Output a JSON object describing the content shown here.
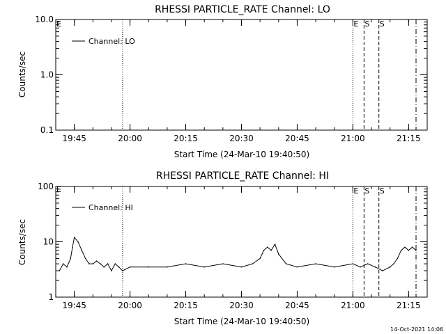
{
  "footer_timestamp": "14-Oct-2021 14:06",
  "chart_data": [
    {
      "type": "line",
      "title": "RHESSI PARTICLE_RATE Channel: LO",
      "xlabel": "Start Time (24-Mar-10 19:40:50)",
      "ylabel": "Counts/sec",
      "yscale": "log",
      "ylim": [
        0.1,
        10.0
      ],
      "yticks": [
        0.1,
        1.0,
        10.0
      ],
      "ytick_labels": [
        "0.1",
        "1.0",
        "10.0"
      ],
      "xlim": [
        "19:40",
        "21:20"
      ],
      "xticks": [
        "19:45",
        "20:00",
        "20:15",
        "20:30",
        "20:45",
        "21:00",
        "21:15"
      ],
      "grid": false,
      "legend": {
        "placement": "top-left",
        "entries": [
          "Channel: LO"
        ]
      },
      "series": [
        {
          "name": "Channel: LO",
          "x": [],
          "values": []
        }
      ],
      "markers": [
        {
          "time": "19:58",
          "style": "dotted",
          "label": ""
        },
        {
          "time": "21:00",
          "style": "dotted",
          "label": "E"
        },
        {
          "time": "21:03",
          "style": "dashed",
          "label": "S"
        },
        {
          "time": "21:07",
          "style": "dashed",
          "label": "S"
        },
        {
          "time": "21:17",
          "style": "dashdot",
          "label": ""
        }
      ],
      "corner_label": "E"
    },
    {
      "type": "line",
      "title": "RHESSI PARTICLE_RATE Channel: HI",
      "xlabel": "Start Time (24-Mar-10 19:40:50)",
      "ylabel": "Counts/sec",
      "yscale": "log",
      "ylim": [
        1,
        100
      ],
      "yticks": [
        1,
        10,
        100
      ],
      "ytick_labels": [
        "1",
        "10",
        "100"
      ],
      "xlim": [
        "19:40",
        "21:20"
      ],
      "xticks": [
        "19:45",
        "20:00",
        "20:15",
        "20:30",
        "20:45",
        "21:00",
        "21:15"
      ],
      "grid": false,
      "legend": {
        "placement": "top-left",
        "entries": [
          "Channel: HI"
        ]
      },
      "series": [
        {
          "name": "Channel: HI",
          "x": [
            "19:41",
            "19:42",
            "19:43",
            "19:44",
            "19:44.5",
            "19:45",
            "19:46",
            "19:47",
            "19:48",
            "19:49",
            "19:50",
            "19:51",
            "19:52",
            "19:53",
            "19:54",
            "19:55",
            "19:56",
            "19:57",
            "19:58",
            "20:00",
            "20:05",
            "20:10",
            "20:15",
            "20:20",
            "20:25",
            "20:30",
            "20:33",
            "20:35",
            "20:36",
            "20:37",
            "20:38",
            "20:39",
            "20:40",
            "20:42",
            "20:45",
            "20:50",
            "20:55",
            "21:00",
            "21:02",
            "21:04",
            "21:06",
            "21:08",
            "21:10",
            "21:11",
            "21:12",
            "21:13",
            "21:14",
            "21:15",
            "21:16",
            "21:17"
          ],
          "values": [
            3,
            4,
            3.5,
            5,
            8,
            12,
            10,
            7,
            5,
            4,
            4,
            4.5,
            4,
            3.5,
            4,
            3,
            4,
            3.5,
            3,
            3.5,
            3.5,
            3.5,
            4,
            3.5,
            4,
            3.5,
            4,
            5,
            7,
            8,
            7,
            9,
            6,
            4,
            3.5,
            4,
            3.5,
            4,
            3.5,
            4,
            3.5,
            3,
            3.5,
            4,
            5,
            7,
            8,
            7,
            8,
            7
          ]
        }
      ],
      "markers": [
        {
          "time": "19:58",
          "style": "dotted",
          "label": ""
        },
        {
          "time": "21:00",
          "style": "dotted",
          "label": "E"
        },
        {
          "time": "21:03",
          "style": "dashed",
          "label": "S"
        },
        {
          "time": "21:07",
          "style": "dashed",
          "label": "S"
        },
        {
          "time": "21:17",
          "style": "dashdot",
          "label": ""
        }
      ],
      "corner_label": "E"
    }
  ]
}
